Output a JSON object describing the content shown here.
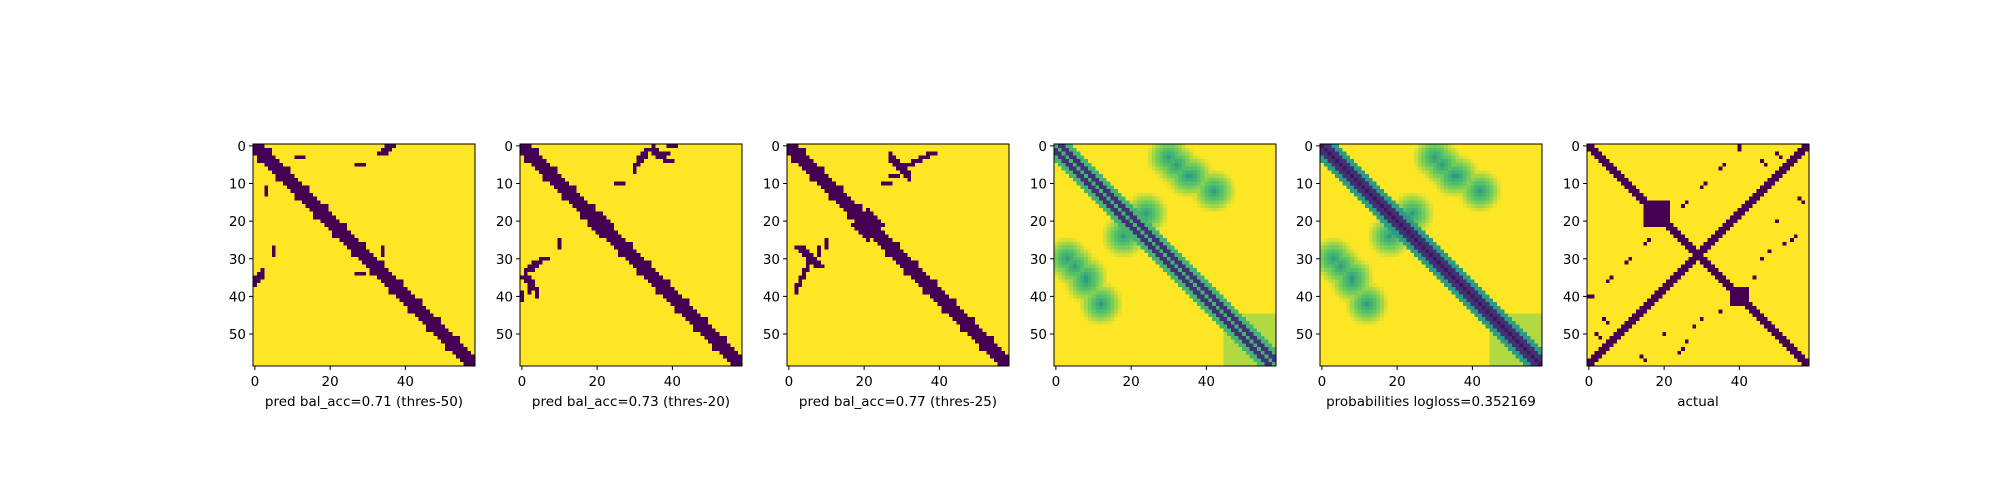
{
  "colors": {
    "low": "#440154",
    "high": "#fde725",
    "viridis_stops": [
      "#440154",
      "#3b528b",
      "#21918c",
      "#5ec962",
      "#fde725"
    ]
  },
  "chart_data": [
    {
      "type": "heatmap",
      "kind": "binary",
      "source": "band",
      "xlabel": "pred bal_acc=0.71 (thres-50)",
      "x_ticks": [
        0,
        20,
        40
      ],
      "y_ticks": [
        0,
        10,
        20,
        30,
        40,
        50
      ],
      "size": 59,
      "diagonal_halfwidth": 2,
      "contacts": [
        [
          28,
          34
        ],
        [
          12,
          3
        ],
        [
          36,
          0
        ],
        [
          35,
          1
        ],
        [
          34,
          2
        ],
        [
          28,
          5
        ]
      ]
    },
    {
      "type": "heatmap",
      "kind": "binary",
      "source": "band",
      "xlabel": "pred bal_acc=0.73 (thres-20)",
      "x_ticks": [
        0,
        20,
        40
      ],
      "y_ticks": [
        0,
        10,
        20,
        30,
        40,
        50
      ],
      "size": 59,
      "diagonal_halfwidth": 2,
      "contacts": [
        [
          2,
          33
        ],
        [
          3,
          32
        ],
        [
          4,
          31
        ],
        [
          1,
          35
        ],
        [
          6,
          30
        ],
        [
          26,
          10
        ],
        [
          35,
          1
        ],
        [
          36,
          2
        ],
        [
          37,
          3
        ],
        [
          38,
          2
        ],
        [
          39,
          4
        ],
        [
          40,
          0
        ]
      ]
    },
    {
      "type": "heatmap",
      "kind": "binary",
      "source": "band",
      "xlabel": "pred bal_acc=0.77 (thres-25)",
      "x_ticks": [
        0,
        20,
        40
      ],
      "y_ticks": [
        0,
        10,
        20,
        30,
        40,
        50
      ],
      "size": 59,
      "diagonal_halfwidth": 2,
      "contacts": [
        [
          3,
          27
        ],
        [
          4,
          28
        ],
        [
          5,
          29
        ],
        [
          6,
          30
        ],
        [
          7,
          31
        ],
        [
          8,
          32
        ],
        [
          26,
          10
        ],
        [
          28,
          8
        ],
        [
          30,
          6
        ],
        [
          32,
          5
        ],
        [
          34,
          4
        ],
        [
          36,
          3
        ],
        [
          38,
          2
        ]
      ]
    },
    {
      "type": "heatmap",
      "kind": "probability",
      "source": "probability",
      "xlabel": "",
      "x_ticks": [
        0,
        20,
        40
      ],
      "y_ticks": [
        0,
        10,
        20,
        30,
        40,
        50
      ],
      "size": 59,
      "main_diagonal_strength": 0.35,
      "contacts": [
        [
          3,
          30
        ],
        [
          8,
          35
        ],
        [
          18,
          24
        ],
        [
          32,
          5
        ],
        [
          36,
          8
        ],
        [
          42,
          12
        ]
      ]
    },
    {
      "type": "heatmap",
      "kind": "probability",
      "source": "probability",
      "xlabel": "probabilities logloss=0.352169",
      "x_ticks": [
        0,
        20,
        40
      ],
      "y_ticks": [
        0,
        10,
        20,
        30,
        40,
        50
      ],
      "size": 59,
      "main_diagonal_strength": 1.0,
      "contacts": [
        [
          3,
          30
        ],
        [
          8,
          35
        ],
        [
          18,
          24
        ],
        [
          32,
          5
        ],
        [
          36,
          8
        ],
        [
          42,
          12
        ]
      ]
    },
    {
      "type": "heatmap",
      "kind": "binary",
      "source": "actual",
      "xlabel": "actual",
      "x_ticks": [
        0,
        20,
        40
      ],
      "y_ticks": [
        0,
        10,
        20,
        30,
        40,
        50
      ],
      "size": 59,
      "diagonal_halfwidth": 1,
      "contacts": [
        [
          0,
          40
        ],
        [
          5,
          36
        ],
        [
          10,
          31
        ],
        [
          15,
          26
        ],
        [
          20,
          21
        ],
        [
          25,
          16
        ],
        [
          30,
          11
        ],
        [
          35,
          6
        ],
        [
          40,
          1
        ],
        [
          2,
          50
        ],
        [
          3,
          51
        ],
        [
          14,
          56
        ],
        [
          15,
          57
        ],
        [
          24,
          55
        ],
        [
          25,
          54
        ],
        [
          46,
          4
        ],
        [
          47,
          5
        ],
        [
          50,
          20
        ],
        [
          52,
          26
        ],
        [
          48,
          28
        ],
        [
          46,
          30
        ],
        [
          44,
          35
        ]
      ]
    }
  ]
}
